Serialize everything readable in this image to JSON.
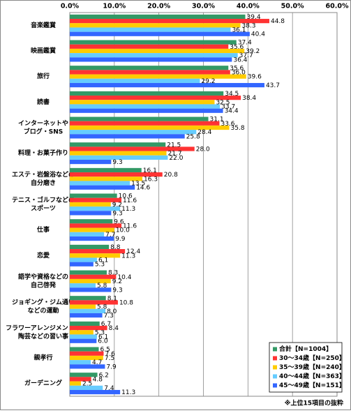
{
  "chart_data": {
    "type": "hbar",
    "categories": [
      [
        "音楽鑑賞"
      ],
      [
        "映画鑑賞"
      ],
      [
        "旅行"
      ],
      [
        "読書"
      ],
      [
        "インターネットや",
        "ブログ・SNS"
      ],
      [
        "料理・お菓子作り"
      ],
      [
        "エステ・岩盤浴などの",
        "自分磨き"
      ],
      [
        "テニス・ゴルフなどの",
        "スポーツ"
      ],
      [
        "仕事"
      ],
      [
        "恋愛"
      ],
      [
        "語学や資格などの",
        "自己啓発"
      ],
      [
        "ジョギング・ジム通い",
        "などの運動"
      ],
      [
        "フラワーアレンジメントや",
        "陶芸などの習い事"
      ],
      [
        "親孝行"
      ],
      [
        "ガーデニング"
      ]
    ],
    "series": [
      {
        "name": "合計【N=1004】",
        "color": "#339966",
        "values": [
          39.4,
          37.4,
          35.6,
          34.5,
          31.1,
          21.5,
          16.1,
          10.6,
          9.6,
          8.8,
          8.3,
          8.1,
          6.7,
          6.5,
          6.2
        ],
        "value_labels": [
          "39.4",
          "37.4",
          "35.6",
          "34.5",
          "31.1",
          "21.5",
          "16.1",
          "10.6",
          "9.6",
          "8.8",
          "8.3",
          "8.1",
          "6.7",
          "6.5",
          "6.2"
        ]
      },
      {
        "name": "30～34歳【N=250】",
        "color": "#ff3333",
        "values": [
          44.8,
          35.6,
          36,
          38.4,
          33.6,
          28,
          20.8,
          11.6,
          11.6,
          12.4,
          10.4,
          10.8,
          8.4,
          7.6,
          4.8
        ],
        "value_labels": [
          "44.8",
          "35.6",
          "36.0",
          "38.4",
          "33.6",
          "28.0",
          "20.8",
          "11.6",
          "11.6",
          "12.4",
          "10.4",
          "10.8",
          "8.4",
          "7.6",
          "4.8"
        ]
      },
      {
        "name": "35～39歳【N=240】",
        "color": "#ffcc00",
        "values": [
          38.3,
          39.2,
          39.6,
          32.5,
          35.8,
          21.7,
          16.3,
          9.2,
          10,
          11.3,
          9.2,
          5.8,
          5.3,
          7.5,
          2.5
        ],
        "value_labels": [
          "38.3",
          "39.2",
          "39.6",
          "32.5",
          "35.8",
          "21.7",
          "16.3",
          "9.2",
          "10.0",
          "11.3",
          "9.2",
          "5.8",
          "5.3",
          "7.5",
          "2.5"
        ]
      },
      {
        "name": "40～44歳【N=363】",
        "color": "#66ccff",
        "values": [
          36.1,
          37.7,
          29.2,
          33.7,
          28.4,
          22,
          13.5,
          11.3,
          7.7,
          6.1,
          5.8,
          8,
          6.1,
          4.7,
          7.4
        ],
        "value_labels": [
          "36.1",
          "37.7",
          "29.2",
          "33.7",
          "28.4",
          "22.0",
          "13.5",
          "11.3",
          "7.7",
          "6.1",
          "5.8",
          "8.0",
          "6.1",
          "4.7",
          "7.4"
        ]
      },
      {
        "name": "45～49歳【N=151】",
        "color": "#3366ff",
        "values": [
          40.4,
          36.4,
          43.7,
          34.4,
          25.8,
          9.3,
          14.6,
          9.3,
          9.9,
          5.3,
          9.3,
          7.3,
          6,
          7.9,
          11.3
        ],
        "value_labels": [
          "40.4",
          "36.4",
          "43.7",
          "34.4",
          "25.8",
          "9.3",
          "14.6",
          "9.3",
          "9.9",
          "5.3",
          "9.3",
          "7.3",
          "6.0",
          "7.9",
          "11.3"
        ]
      }
    ],
    "xlim": [
      0,
      60
    ],
    "xticks": [
      {
        "value": 0,
        "label": "0.0%"
      },
      {
        "value": 10,
        "label": "10.0%"
      },
      {
        "value": 20,
        "label": "20.0%"
      },
      {
        "value": 30,
        "label": "30.0%"
      },
      {
        "value": 40,
        "label": "40.0%"
      },
      {
        "value": 50,
        "label": "50.0%"
      },
      {
        "value": 60,
        "label": "60.0%"
      }
    ],
    "grid": true,
    "legend": "lower right",
    "note": "※上位15項目の抜粋"
  }
}
